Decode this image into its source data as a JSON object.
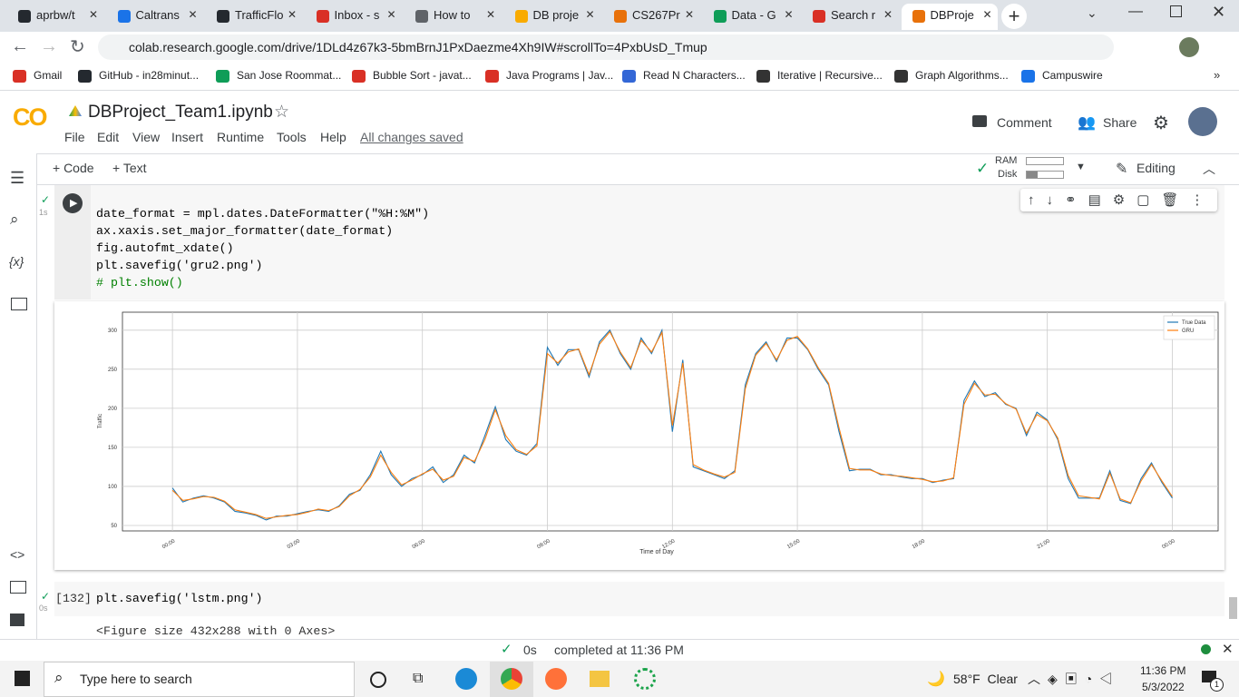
{
  "browser": {
    "tabs": [
      "aprbw/t",
      "Caltrans",
      "TrafficFlo",
      "Inbox - s",
      "How to",
      "DB proje",
      "CS267Pr",
      "Data - G",
      "Search r",
      "DBProje"
    ],
    "active_tab": 9,
    "url": "colab.research.google.com/drive/1DLd4z67k3-5bmBrnJ1PxDaezme4Xh9IW#scrollTo=4PxbUsD_Tmup",
    "bookmarks": [
      "Gmail",
      "GitHub - in28minut...",
      "San Jose Roommat...",
      "Bubble Sort - javat...",
      "Java Programs | Jav...",
      "Read N Characters...",
      "Iterative | Recursive...",
      "Graph Algorithms...",
      "Campuswire"
    ]
  },
  "colab": {
    "logo": "CO",
    "notebook_title": "DBProject_Team1.ipynb",
    "menu": [
      "File",
      "Edit",
      "View",
      "Insert",
      "Runtime",
      "Tools",
      "Help"
    ],
    "save_status": "All changes saved",
    "comment": "Comment",
    "share": "Share",
    "add_code": "+ Code",
    "add_text": "+ Text",
    "ram": "RAM",
    "disk": "Disk",
    "editing": "Editing",
    "variables_icon": "{x}"
  },
  "cells": {
    "cell1": {
      "exec_time": "1s",
      "code": [
        "date_format = mpl.dates.DateFormatter(\"%H:%M\")",
        "ax.xaxis.set_major_formatter(date_format)",
        "fig.autofmt_xdate()",
        "plt.savefig('gru2.png')",
        "# plt.show()"
      ]
    },
    "cell2": {
      "prompt": "[132]",
      "exec_time": "0s",
      "code": "plt.savefig('lstm.png')",
      "output": "<Figure size 432x288 with 0 Axes>"
    }
  },
  "chart_data": {
    "type": "line",
    "xlabel": "Time of Day",
    "ylabel": "Traffic",
    "x": [
      0,
      0.25,
      0.5,
      0.75,
      1,
      1.25,
      1.5,
      1.75,
      2,
      2.25,
      2.5,
      2.75,
      3,
      3.25,
      3.5,
      3.75,
      4,
      4.25,
      4.5,
      4.75,
      5,
      5.25,
      5.5,
      5.75,
      6,
      6.25,
      6.5,
      6.75,
      7,
      7.25,
      7.5,
      7.75,
      8,
      8.25,
      8.5,
      8.75,
      9,
      9.25,
      9.5,
      9.75,
      10,
      10.25,
      10.5,
      10.75,
      11,
      11.25,
      11.5,
      11.75,
      12,
      12.25,
      12.5,
      12.75,
      13,
      13.25,
      13.5,
      13.75,
      14,
      14.25,
      14.5,
      14.75,
      15,
      15.25,
      15.5,
      15.75,
      16,
      16.25,
      16.5,
      16.75,
      17,
      17.25,
      17.5,
      17.75,
      18,
      18.25,
      18.5,
      18.75,
      19,
      19.25,
      19.5,
      19.75,
      20,
      20.25,
      20.5,
      20.75,
      21,
      21.25,
      21.5,
      21.75,
      22,
      22.25,
      22.5,
      22.75,
      23,
      23.25,
      23.5,
      23.75,
      24
    ],
    "series": [
      {
        "name": "True Data",
        "color": "#1f77b4",
        "values": [
          98,
          80,
          85,
          88,
          85,
          80,
          68,
          66,
          63,
          57,
          62,
          62,
          65,
          68,
          70,
          68,
          75,
          90,
          95,
          115,
          145,
          115,
          100,
          110,
          115,
          125,
          105,
          115,
          140,
          130,
          165,
          202,
          160,
          145,
          140,
          155,
          278,
          255,
          275,
          275,
          240,
          285,
          300,
          270,
          250,
          290,
          270,
          300,
          170,
          262,
          125,
          120,
          115,
          110,
          120,
          230,
          270,
          285,
          260,
          290,
          290,
          275,
          250,
          230,
          170,
          120,
          122,
          122,
          115,
          115,
          112,
          110,
          110,
          105,
          108,
          110,
          210,
          235,
          215,
          220,
          205,
          200,
          165,
          195,
          185,
          160,
          110,
          85,
          85,
          85,
          120,
          82,
          78,
          110,
          130,
          105,
          85
        ]
      },
      {
        "name": "GRU",
        "color": "#ff7f0e",
        "values": [
          95,
          82,
          84,
          87,
          86,
          81,
          70,
          67,
          64,
          59,
          61,
          63,
          64,
          67,
          71,
          69,
          74,
          88,
          96,
          112,
          140,
          118,
          102,
          108,
          116,
          122,
          108,
          113,
          137,
          132,
          160,
          198,
          165,
          147,
          141,
          152,
          270,
          258,
          272,
          276,
          243,
          282,
          298,
          272,
          252,
          287,
          272,
          297,
          178,
          258,
          128,
          121,
          116,
          112,
          118,
          225,
          268,
          283,
          262,
          287,
          292,
          276,
          252,
          232,
          175,
          123,
          121,
          121,
          116,
          114,
          113,
          111,
          109,
          106,
          107,
          111,
          205,
          232,
          217,
          218,
          206,
          199,
          168,
          192,
          184,
          162,
          114,
          88,
          86,
          84,
          117,
          84,
          79,
          107,
          128,
          107,
          87
        ]
      }
    ],
    "xlim": [
      -1.2,
      25.1
    ],
    "ylim": [
      43,
      323
    ],
    "xticks": [
      {
        "value": 0,
        "label": "00:00"
      },
      {
        "value": 3,
        "label": "03:00"
      },
      {
        "value": 6,
        "label": "06:00"
      },
      {
        "value": 9,
        "label": "09:00"
      },
      {
        "value": 12,
        "label": "12:00"
      },
      {
        "value": 15,
        "label": "15:00"
      },
      {
        "value": 18,
        "label": "18:00"
      },
      {
        "value": 21,
        "label": "21:00"
      },
      {
        "value": 24,
        "label": "00:00"
      }
    ],
    "yticks": [
      50,
      100,
      150,
      200,
      250,
      300
    ],
    "grid": true,
    "legend": "upper right"
  },
  "status": {
    "time": "0s",
    "message": "completed at 11:36 PM"
  },
  "taskbar": {
    "search": "Type here to search",
    "weather": "58°F  Clear",
    "time": "11:36 PM",
    "date": "5/3/2022",
    "notifications": "1"
  }
}
